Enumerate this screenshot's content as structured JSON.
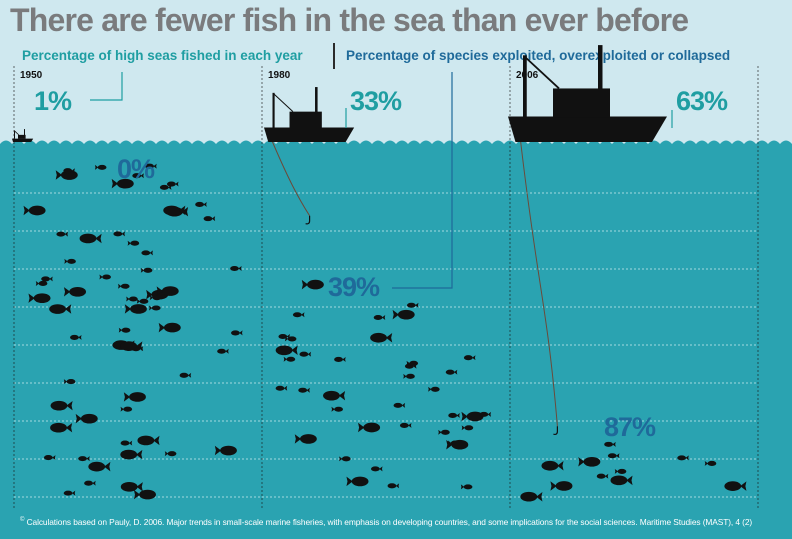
{
  "title": "There are fewer fish in the sea than ever before",
  "legend": {
    "high_seas": "Percentage of high seas fished in each year",
    "species": "Percentage of species exploited, overexploited or collapsed"
  },
  "colors": {
    "sky": "#cfe8ef",
    "sea": "#2aa3b1",
    "teal_text": "#1f9ea2",
    "blue_text": "#1f6a9a",
    "fish": "#111111"
  },
  "chart_data": {
    "type": "bar",
    "categories": [
      "1950",
      "1980",
      "2006"
    ],
    "series": [
      {
        "name": "Percentage of high seas fished in each year",
        "values": [
          1,
          33,
          63
        ]
      },
      {
        "name": "Percentage of species exploited, overexploited or collapsed",
        "values": [
          0,
          39,
          87
        ]
      }
    ],
    "labels": {
      "high_seas": [
        "1%",
        "33%",
        "63%"
      ],
      "species": [
        "0%",
        "39%",
        "87%"
      ]
    },
    "ylim": [
      0,
      100
    ]
  },
  "footnote": {
    "marker": "©",
    "text": "Calculations based on Pauly, D. 2006. Major trends in small-scale marine fisheries, with emphasis on developing countries, and some implications for the social sciences. Maritime Studies (MAST), 4 (2)"
  }
}
